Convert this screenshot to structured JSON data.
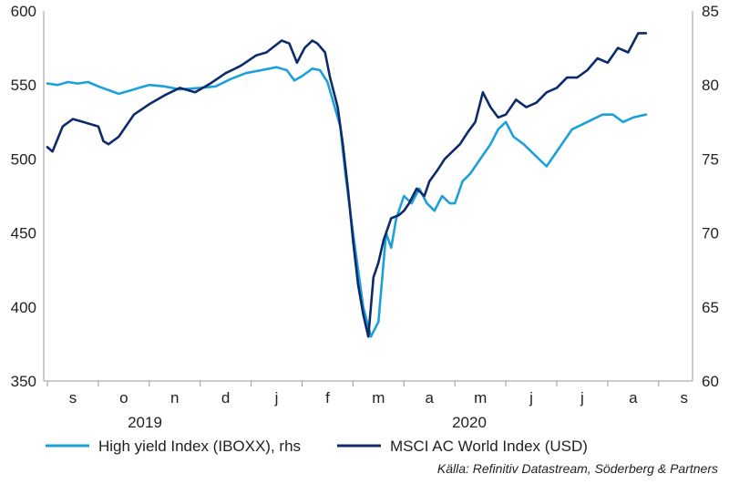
{
  "chart_data": {
    "type": "line",
    "source_note": "Källa: Refinitiv Datastream, Söderberg & Partners",
    "axes": {
      "left": {
        "min": 350,
        "max": 600,
        "ticks": [
          "350",
          "400",
          "450",
          "500",
          "550",
          "600"
        ]
      },
      "right": {
        "min": 60,
        "max": 85,
        "ticks": [
          "60",
          "65",
          "70",
          "75",
          "80",
          "85"
        ]
      },
      "x_months": [
        "s",
        "o",
        "n",
        "d",
        "j",
        "f",
        "m",
        "a",
        "m",
        "j",
        "j",
        "a",
        "s"
      ],
      "x_years": [
        "2019",
        "2020"
      ],
      "grid": false
    },
    "legend": {
      "placement": "bottom"
    },
    "series": [
      {
        "name": "High yield Index (IBOXX), rhs",
        "axis": "right",
        "color": "#1ca0dc",
        "t": [
          0,
          0.2,
          0.4,
          0.6,
          0.8,
          1.0,
          1.4,
          1.6,
          1.8,
          2.0,
          2.3,
          2.6,
          3.0,
          3.3,
          3.6,
          3.9,
          4.2,
          4.5,
          4.7,
          4.85,
          5.0,
          5.2,
          5.35,
          5.5,
          5.6,
          5.75,
          5.85,
          6.0,
          6.1,
          6.2,
          6.35,
          6.5,
          6.65,
          6.75,
          6.85,
          7.0,
          7.15,
          7.3,
          7.45,
          7.6,
          7.75,
          7.9,
          8.0,
          8.15,
          8.3,
          8.5,
          8.7,
          8.85,
          9.0,
          9.15,
          9.35,
          9.5,
          9.65,
          9.8,
          10.0,
          10.3,
          10.6,
          10.9,
          11.1,
          11.3,
          11.5,
          11.75
        ],
        "values": [
          80.1,
          80.0,
          80.2,
          80.1,
          80.2,
          79.9,
          79.4,
          79.6,
          79.8,
          80.0,
          79.9,
          79.7,
          79.8,
          79.9,
          80.4,
          80.8,
          81.0,
          81.2,
          81.0,
          80.3,
          80.6,
          81.1,
          81.0,
          80.2,
          79.0,
          77.2,
          74.0,
          70.0,
          67.5,
          65.0,
          63.0,
          64.0,
          70.0,
          69.0,
          71.0,
          72.5,
          72.0,
          73.0,
          72.0,
          71.5,
          72.5,
          72.0,
          72.0,
          73.5,
          74.0,
          75.0,
          76.0,
          77.0,
          77.5,
          76.5,
          76.0,
          75.5,
          75.0,
          74.5,
          75.5,
          77.0,
          77.5,
          78.0,
          78.0,
          77.5,
          77.8,
          78.0
        ]
      },
      {
        "name": "MSCI AC World Index (USD)",
        "axis": "left",
        "color": "#0d2a6b",
        "t": [
          0,
          0.1,
          0.3,
          0.5,
          0.7,
          1.0,
          1.1,
          1.2,
          1.4,
          1.7,
          2.0,
          2.3,
          2.6,
          2.9,
          3.2,
          3.5,
          3.8,
          4.1,
          4.3,
          4.6,
          4.75,
          4.9,
          5.05,
          5.2,
          5.3,
          5.45,
          5.55,
          5.7,
          5.8,
          5.9,
          6.0,
          6.1,
          6.2,
          6.3,
          6.4,
          6.5,
          6.6,
          6.75,
          6.9,
          7.0,
          7.1,
          7.25,
          7.4,
          7.5,
          7.65,
          7.8,
          7.95,
          8.1,
          8.25,
          8.4,
          8.55,
          8.7,
          8.85,
          9.0,
          9.2,
          9.4,
          9.6,
          9.8,
          10.0,
          10.2,
          10.4,
          10.6,
          10.8,
          11.0,
          11.2,
          11.4,
          11.6,
          11.75
        ],
        "values": [
          508,
          505,
          522,
          527,
          525,
          522,
          512,
          510,
          515,
          530,
          537,
          543,
          548,
          545,
          551,
          558,
          563,
          570,
          572,
          580,
          578,
          565,
          575,
          580,
          578,
          572,
          555,
          535,
          510,
          480,
          445,
          415,
          395,
          380,
          420,
          430,
          445,
          460,
          462,
          465,
          470,
          480,
          475,
          485,
          492,
          500,
          505,
          510,
          518,
          525,
          545,
          535,
          528,
          530,
          540,
          535,
          538,
          545,
          548,
          555,
          555,
          560,
          568,
          565,
          575,
          572,
          585,
          585
        ]
      }
    ]
  }
}
